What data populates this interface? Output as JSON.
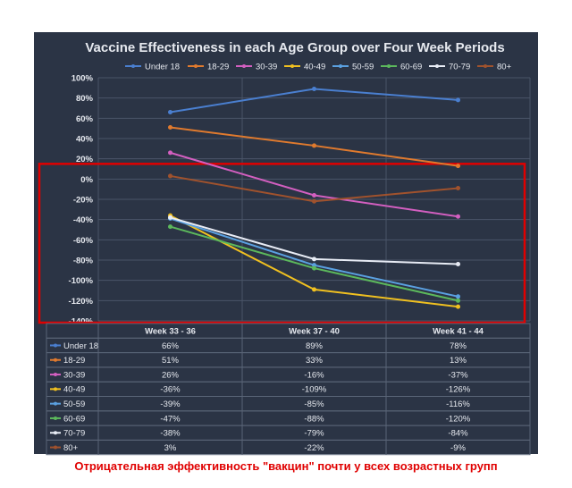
{
  "chart_data": {
    "type": "line",
    "title": "Vaccine Effectiveness in each Age Group over Four Week Periods",
    "categories": [
      "Week 33 - 36",
      "Week 37 - 40",
      "Week 41 - 44"
    ],
    "ylim": [
      -140,
      100
    ],
    "yticks": [
      "100%",
      "80%",
      "60%",
      "40%",
      "20%",
      "0%",
      "-20%",
      "-40%",
      "-60%",
      "-80%",
      "-100%",
      "-120%",
      "-140%"
    ],
    "grid": true,
    "legend": "top",
    "series": [
      {
        "name": "Under 18",
        "color": "#4a7fd0",
        "values": [
          66,
          89,
          78
        ],
        "labels": [
          "66%",
          "89%",
          "78%"
        ]
      },
      {
        "name": "18-29",
        "color": "#e07a2e",
        "values": [
          51,
          33,
          13
        ],
        "labels": [
          "51%",
          "33%",
          "13%"
        ]
      },
      {
        "name": "30-39",
        "color": "#d35fc0",
        "values": [
          26,
          -16,
          -37
        ],
        "labels": [
          "26%",
          "-16%",
          "-37%"
        ]
      },
      {
        "name": "40-49",
        "color": "#f0c020",
        "values": [
          -36,
          -109,
          -126
        ],
        "labels": [
          "-36%",
          "-109%",
          "-126%"
        ]
      },
      {
        "name": "50-59",
        "color": "#5aa0e0",
        "values": [
          -39,
          -85,
          -116
        ],
        "labels": [
          "-39%",
          "-85%",
          "-116%"
        ]
      },
      {
        "name": "60-69",
        "color": "#5cb85c",
        "values": [
          -47,
          -88,
          -120
        ],
        "labels": [
          "-47%",
          "-88%",
          "-120%"
        ]
      },
      {
        "name": "70-79",
        "color": "#e8ecf5",
        "values": [
          -38,
          -79,
          -84
        ],
        "labels": [
          "-38%",
          "-79%",
          "-84%"
        ]
      },
      {
        "name": "80+",
        "color": "#a0522d",
        "values": [
          3,
          -22,
          -9
        ],
        "labels": [
          "3%",
          "-22%",
          "-9%"
        ]
      }
    ],
    "highlight": {
      "from": 15,
      "to": -140,
      "color": "#e00000"
    }
  },
  "caption": "Отрицательная эффективность \"вакцин\" почти у всех возрастных групп"
}
